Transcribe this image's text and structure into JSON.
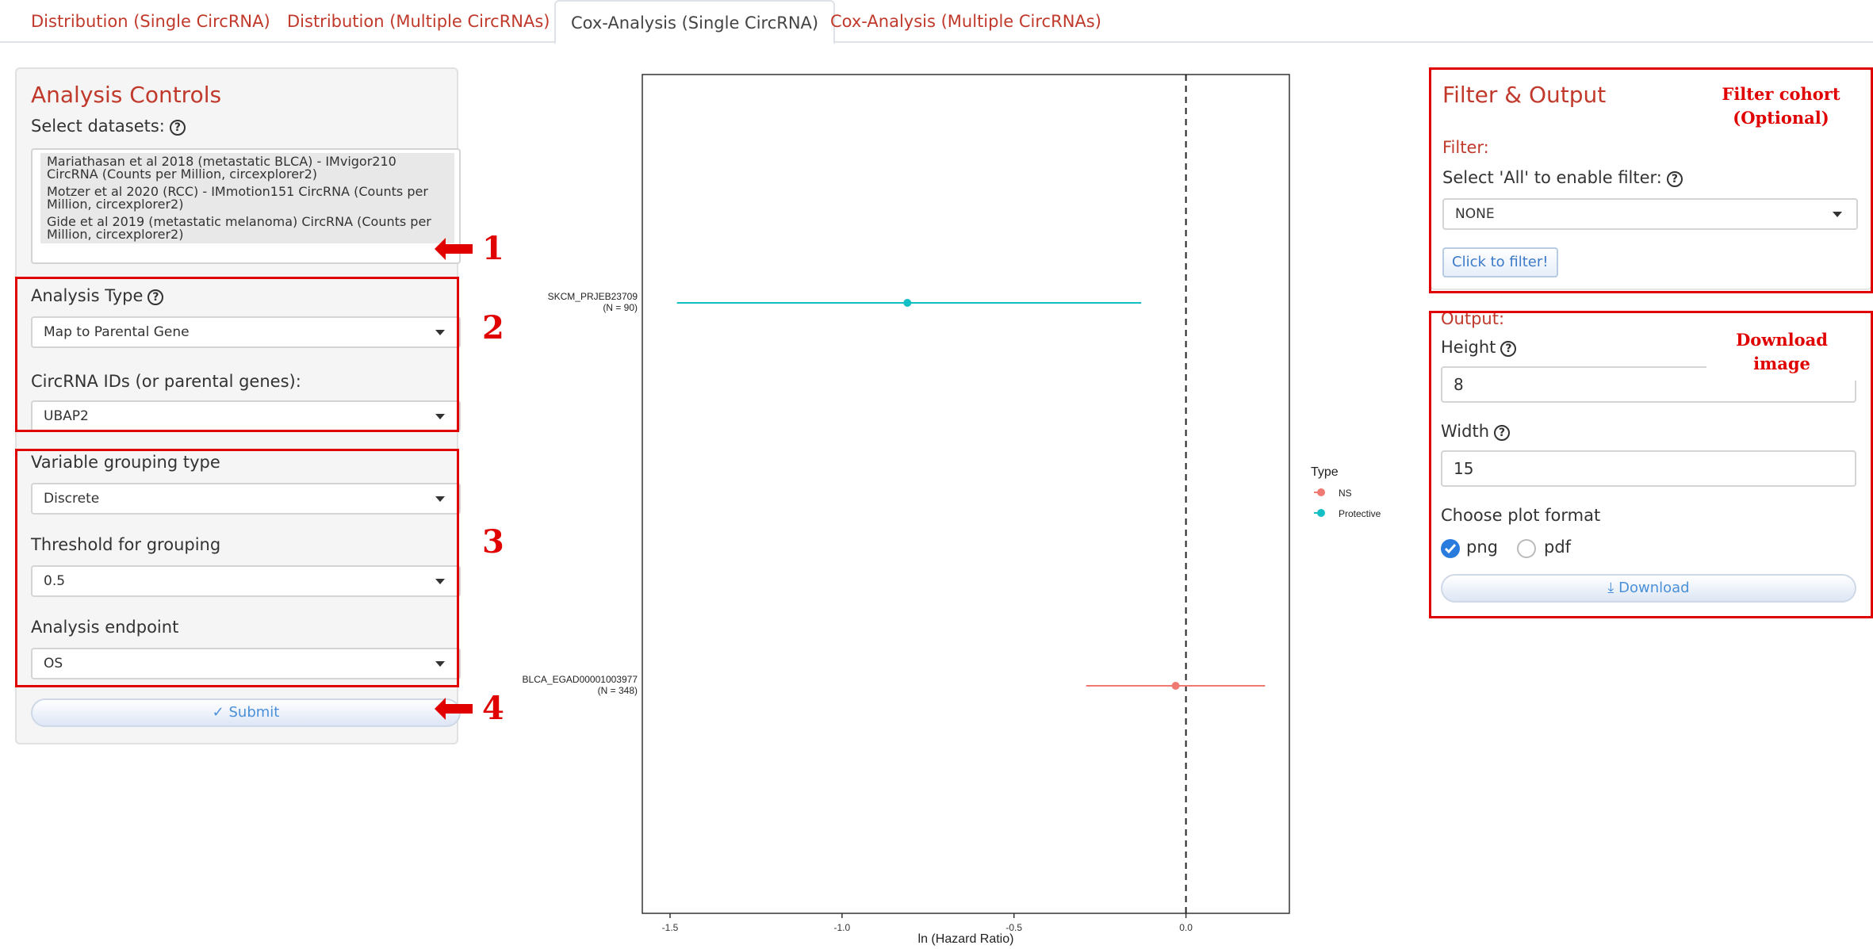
{
  "tabs": [
    {
      "label": "Distribution (Single CircRNA)"
    },
    {
      "label": "Distribution (Multiple CircRNAs)"
    },
    {
      "label": "Cox-Analysis (Single CircRNA)"
    },
    {
      "label": "Cox-Analysis (Multiple CircRNAs)"
    }
  ],
  "controls": {
    "title": "Analysis Controls",
    "datasets_label": "Select datasets:",
    "datasets": [
      "Mariathasan et al 2018 (metastatic BLCA) - IMvigor210 CircRNA (Counts per Million, circexplorer2)",
      "Motzer et al 2020 (RCC) - IMmotion151 CircRNA (Counts per Million, circexplorer2)",
      "Gide et al 2019 (metastatic melanoma) CircRNA (Counts per Million, circexplorer2)"
    ],
    "analysis_type_label": "Analysis Type",
    "analysis_type_value": "Map to Parental Gene",
    "circ_ids_label": "CircRNA IDs (or parental genes):",
    "circ_ids_value": "UBAP2",
    "grouping_type_label": "Variable grouping type",
    "grouping_type_value": "Discrete",
    "threshold_label": "Threshold for grouping",
    "threshold_value": "0.5",
    "endpoint_label": "Analysis endpoint",
    "endpoint_value": "OS",
    "submit_label": "Submit",
    "submit_icon": "check-icon"
  },
  "annotations": {
    "n1": "1",
    "n2": "2",
    "n3": "3",
    "n4": "4",
    "filter_note": "Filter cohort (Optional)",
    "download_note": "Download image"
  },
  "filter": {
    "title": "Filter & Output",
    "filter_label": "Filter:",
    "select_all_label": "Select 'All' to enable filter:",
    "select_value": "NONE",
    "button_label": "Click to filter!"
  },
  "output": {
    "label": "Output:",
    "height_label": "Height",
    "height_value": "8",
    "width_label": "Width",
    "width_value": "15",
    "format_label": "Choose plot format",
    "format_options": [
      "png",
      "pdf"
    ],
    "format_selected": "png",
    "download_label": "Download",
    "download_icon": "download-icon"
  },
  "chart_data": {
    "type": "scatter",
    "subtype": "forest-plot",
    "xlabel": "ln (Hazard Ratio)",
    "xlim": [
      -1.5,
      0.22
    ],
    "xticks": [
      "-1.5",
      "-1.0",
      "-0.5",
      "0.0"
    ],
    "reference_line": 0.0,
    "rows": [
      {
        "label": "SKCM_PRJEB23709",
        "n_label": "(N = 90)",
        "estimate": -0.81,
        "lower": -1.48,
        "upper": -0.13,
        "type": "Protective"
      },
      {
        "label": "BLCA_EGAD00001003977",
        "n_label": "(N = 348)",
        "estimate": -0.03,
        "lower": -0.29,
        "upper": 0.23,
        "type": "NS"
      }
    ],
    "legend": {
      "title": "Type",
      "position": "right",
      "items": [
        {
          "name": "NS",
          "color": "#f07a72"
        },
        {
          "name": "Protective",
          "color": "#12bfc4"
        }
      ]
    },
    "colors": {
      "NS": "#f07a72",
      "Protective": "#12bfc4"
    },
    "grid": false
  }
}
